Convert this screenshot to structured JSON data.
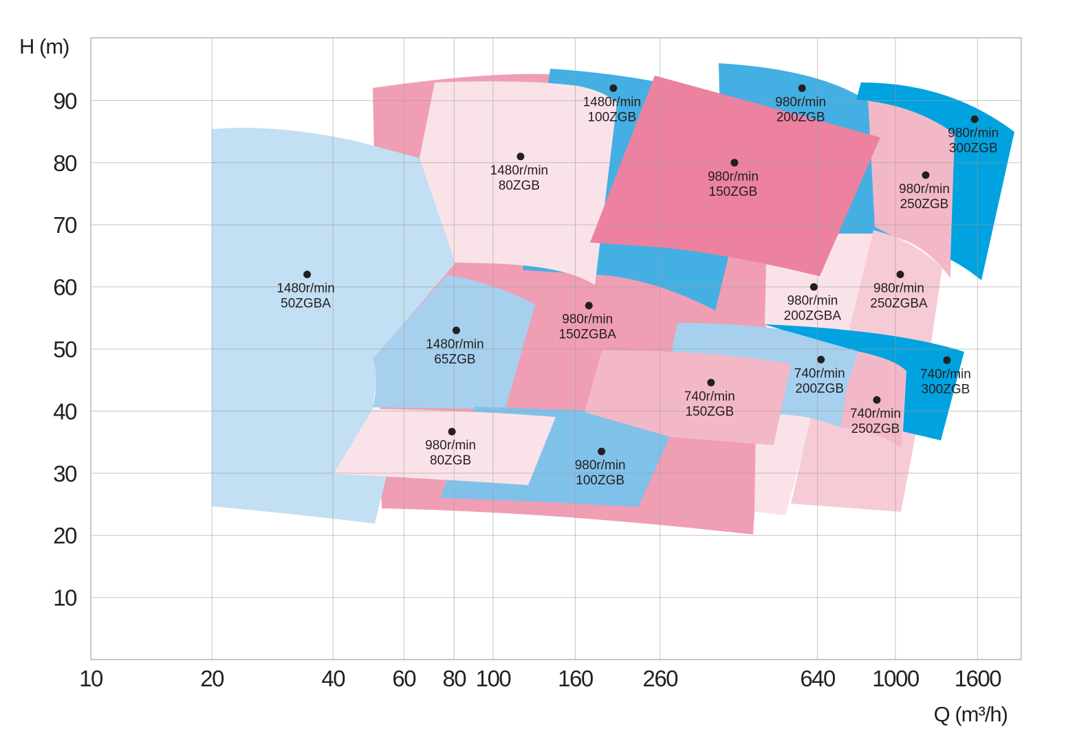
{
  "chart_data": {
    "type": "area",
    "title": "",
    "xlabel": "Q (m³/h)",
    "ylabel": "H (m)",
    "x_scale": "log",
    "y_scale": "linear",
    "xlim": [
      10,
      2000
    ],
    "ylim": [
      0,
      100
    ],
    "grid": true,
    "x_ticks": [
      "10",
      "20",
      "40",
      "60",
      "80",
      "100",
      "160",
      "260",
      "640",
      "1000",
      "1600"
    ],
    "y_ticks": [
      "10",
      "20",
      "30",
      "40",
      "50",
      "60",
      "70",
      "80",
      "90"
    ],
    "regions": [
      {
        "speed": "980r/min",
        "model": "150ZGBA",
        "Q": 173,
        "H": 57,
        "color": "#f09eb3"
      },
      {
        "speed": "1480r/min",
        "model": "100ZGB",
        "Q": 199,
        "H": 92,
        "color": "#44afe3"
      },
      {
        "speed": "1480r/min",
        "model": "80ZGB",
        "Q": 117,
        "H": 81,
        "color": "#fae3e8"
      },
      {
        "speed": "980r/min",
        "model": "200ZGB",
        "Q": 586,
        "H": 92,
        "color": "#44afe3"
      },
      {
        "speed": "980r/min",
        "model": "200ZGBA",
        "Q": 627,
        "H": 60,
        "color": "#fae3e8"
      },
      {
        "speed": "980r/min",
        "model": "250ZGBA",
        "Q": 1028,
        "H": 62,
        "color": "#f7cbd6"
      },
      {
        "speed": "980r/min",
        "model": "250ZGB",
        "Q": 1189,
        "H": 78,
        "color": "#f3b8c7"
      },
      {
        "speed": "980r/min",
        "model": "300ZGB",
        "Q": 1574,
        "H": 87,
        "color": "#00a2df"
      },
      {
        "speed": "980r/min",
        "model": "150ZGB",
        "Q": 398,
        "H": 80,
        "color": "#ec829f"
      },
      {
        "speed": "1480r/min",
        "model": "50ZGBA",
        "Q": 34.5,
        "H": 62,
        "color": "#c2dff3"
      },
      {
        "speed": "1480r/min",
        "model": "65ZGB",
        "Q": 81,
        "H": 53,
        "color": "#a6d0ee"
      },
      {
        "speed": "980r/min",
        "model": "100ZGB",
        "Q": 186,
        "H": 33.5,
        "color": "#80c1ea"
      },
      {
        "speed": "980r/min",
        "model": "80ZGB",
        "Q": 79,
        "H": 36.7,
        "color": "#fae3e8"
      },
      {
        "speed": "740r/min",
        "model": "200ZGB",
        "Q": 653,
        "H": 48.3,
        "color": "#a6d0ee"
      },
      {
        "speed": "740r/min",
        "model": "300ZGB",
        "Q": 1343,
        "H": 48.2,
        "color": "#00a2df"
      },
      {
        "speed": "740r/min",
        "model": "250ZGB",
        "Q": 899,
        "H": 41.8,
        "color": "#f3b8c7"
      },
      {
        "speed": "740r/min",
        "model": "150ZGB",
        "Q": 348,
        "H": 44.6,
        "color": "#f3b8c7"
      }
    ]
  }
}
